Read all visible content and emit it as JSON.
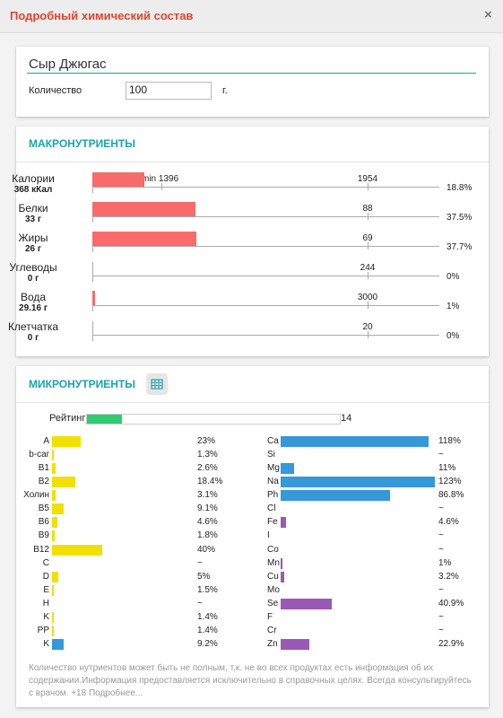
{
  "header": {
    "title": "Подробный химический состав",
    "close": "×"
  },
  "product": {
    "name": "Сыр Джюгас",
    "quantity_label": "Количество",
    "quantity": "100",
    "unit": "г."
  },
  "macro": {
    "title": "МАКРОНУТРИЕНТЫ",
    "rows": [
      {
        "name": "Калории",
        "amount": "368 кКал",
        "min": "min 1396",
        "norm": 1954,
        "percent": {
          "value": 18.8,
          "label": "18.8%"
        }
      },
      {
        "name": "Белки",
        "amount": "33 г",
        "norm": 88,
        "percent": {
          "value": 37.5,
          "label": "37.5%"
        }
      },
      {
        "name": "Жиры",
        "amount": "26 г",
        "norm": 69,
        "percent": {
          "value": 37.7,
          "label": "37.7%"
        }
      },
      {
        "name": "Углеводы",
        "amount": "0 г",
        "norm": 244,
        "percent": {
          "value": 0,
          "label": "0%"
        }
      },
      {
        "name": "Вода",
        "amount": "29.16 г",
        "norm": 3000,
        "percent": {
          "value": 1,
          "label": "1%"
        }
      },
      {
        "name": "Клетчатка",
        "amount": "0 г",
        "norm": 20,
        "percent": {
          "value": 0,
          "label": "0%"
        }
      }
    ]
  },
  "micro": {
    "title": "МИКРОНУТРИЕНТЫ",
    "rating_label": "Рейтинг",
    "rating": 14,
    "left": [
      {
        "name": "A",
        "percent": {
          "value": 23,
          "label": "23%"
        },
        "color": "#f2e000"
      },
      {
        "name": "b-car",
        "percent": {
          "value": 1.3,
          "label": "1.3%"
        },
        "color": "#f2e000"
      },
      {
        "name": "B1",
        "percent": {
          "value": 2.6,
          "label": "2.6%"
        },
        "color": "#f2e000"
      },
      {
        "name": "B2",
        "percent": {
          "value": 18.4,
          "label": "18.4%"
        },
        "color": "#f2e000"
      },
      {
        "name": "Холин",
        "percent": {
          "value": 3.1,
          "label": "3.1%"
        },
        "color": "#f2e000"
      },
      {
        "name": "B5",
        "percent": {
          "value": 9.1,
          "label": "9.1%"
        },
        "color": "#f2e000"
      },
      {
        "name": "B6",
        "percent": {
          "value": 4.6,
          "label": "4.6%"
        },
        "color": "#f2e000"
      },
      {
        "name": "B9",
        "percent": {
          "value": 1.8,
          "label": "1.8%"
        },
        "color": "#f2e000"
      },
      {
        "name": "B12",
        "percent": {
          "value": 40,
          "label": "40%"
        },
        "color": "#f2e000"
      },
      {
        "name": "C",
        "percent": {
          "value": null,
          "label": "~"
        },
        "color": "#f2e000"
      },
      {
        "name": "D",
        "percent": {
          "value": 5,
          "label": "5%"
        },
        "color": "#f2e000"
      },
      {
        "name": "E",
        "percent": {
          "value": 1.5,
          "label": "1.5%"
        },
        "color": "#f2e000"
      },
      {
        "name": "H",
        "percent": {
          "value": null,
          "label": "~"
        },
        "color": "#f2e000"
      },
      {
        "name": "K",
        "percent": {
          "value": 1.4,
          "label": "1.4%"
        },
        "color": "#f2e000"
      },
      {
        "name": "PP",
        "percent": {
          "value": 1.4,
          "label": "1.4%"
        },
        "color": "#f2e000"
      },
      {
        "name": "K",
        "percent": {
          "value": 9.2,
          "label": "9.2%"
        },
        "color": "#3498db"
      }
    ],
    "right": [
      {
        "name": "Ca",
        "percent": {
          "value": 118,
          "label": "118%"
        },
        "color": "#3498db"
      },
      {
        "name": "Si",
        "percent": {
          "value": null,
          "label": "~"
        },
        "color": "#3498db"
      },
      {
        "name": "Mg",
        "percent": {
          "value": 11,
          "label": "11%"
        },
        "color": "#3498db"
      },
      {
        "name": "Na",
        "percent": {
          "value": 123,
          "label": "123%"
        },
        "color": "#3498db"
      },
      {
        "name": "Ph",
        "percent": {
          "value": 86.8,
          "label": "86.8%"
        },
        "color": "#3498db"
      },
      {
        "name": "Cl",
        "percent": {
          "value": null,
          "label": "~"
        },
        "color": "#3498db"
      },
      {
        "name": "Fe",
        "percent": {
          "value": 4.6,
          "label": "4.6%"
        },
        "color": "#9b59b6"
      },
      {
        "name": "I",
        "percent": {
          "value": null,
          "label": "~"
        },
        "color": "#9b59b6"
      },
      {
        "name": "Co",
        "percent": {
          "value": null,
          "label": "~"
        },
        "color": "#9b59b6"
      },
      {
        "name": "Mn",
        "percent": {
          "value": 1,
          "label": "1%"
        },
        "color": "#9b59b6"
      },
      {
        "name": "Cu",
        "percent": {
          "value": 3.2,
          "label": "3.2%"
        },
        "color": "#9b59b6"
      },
      {
        "name": "Mo",
        "percent": {
          "value": null,
          "label": "~"
        },
        "color": "#9b59b6"
      },
      {
        "name": "Se",
        "percent": {
          "value": 40.9,
          "label": "40.9%"
        },
        "color": "#9b59b6"
      },
      {
        "name": "F",
        "percent": {
          "value": null,
          "label": "~"
        },
        "color": "#9b59b6"
      },
      {
        "name": "Cr",
        "percent": {
          "value": null,
          "label": "~"
        },
        "color": "#9b59b6"
      },
      {
        "name": "Zn",
        "percent": {
          "value": 22.9,
          "label": "22.9%"
        },
        "color": "#9b59b6"
      }
    ],
    "note": "Количество нутриентов может быть не полным, т.к. не во всех продуктах есть информация об их содержании.Информация предоставляется исключительно в справочных целях. Всегда консультируйтесь с врачом. +18 Подробнее..."
  }
}
